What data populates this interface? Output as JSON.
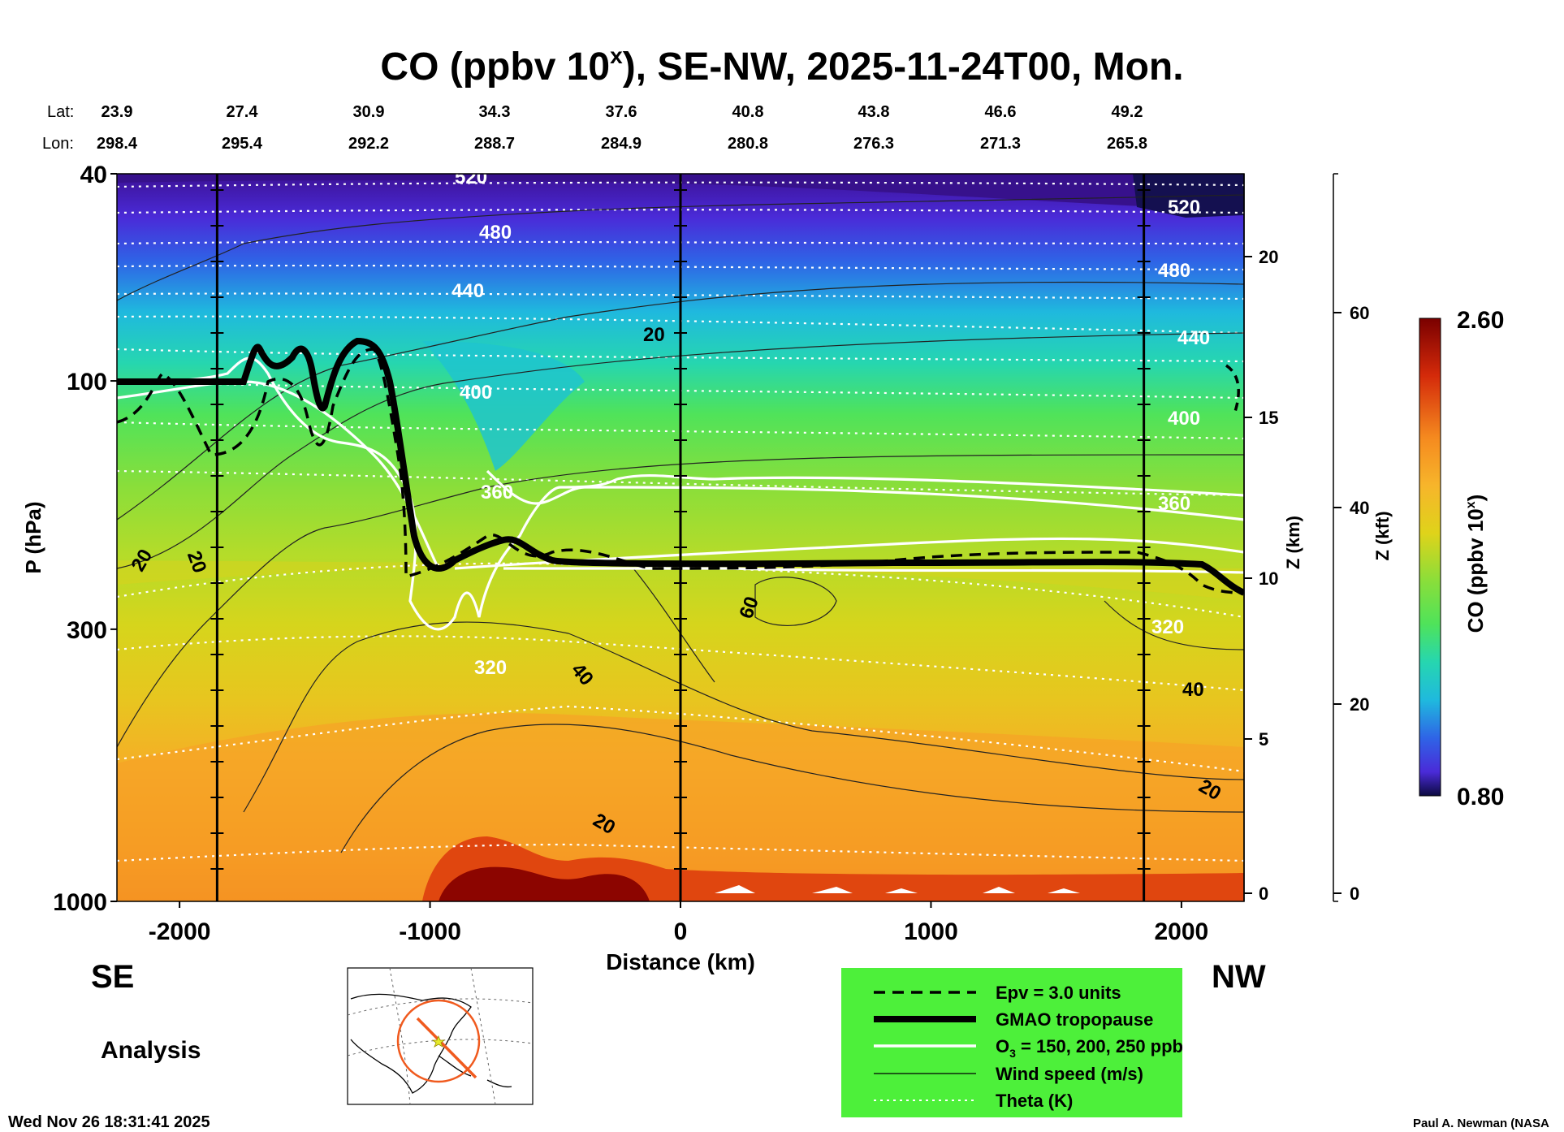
{
  "chart_data": {
    "type": "heatmap",
    "title_main": "CO (ppbv 10",
    "title_sup": "x",
    "title_rest": "), SE-NW, 2025-11-24T00, Mon.",
    "lat_label": "Lat:",
    "lon_label": "Lon:",
    "lats": [
      "23.9",
      "27.4",
      "30.9",
      "34.3",
      "37.6",
      "40.8",
      "43.8",
      "46.6",
      "49.2"
    ],
    "lons": [
      "298.4",
      "295.4",
      "292.2",
      "288.7",
      "284.9",
      "280.8",
      "276.3",
      "271.3",
      "265.8"
    ],
    "xlabel": "Distance (km)",
    "xlim": [
      -2250,
      2250
    ],
    "xticks": [
      -2000,
      -1000,
      0,
      1000,
      2000
    ],
    "xtick_labels": [
      "-2000",
      "-1000",
      "0",
      "1000",
      "2000"
    ],
    "ylabel": "P (hPa)",
    "yscale": "log",
    "ylim": [
      1000,
      40
    ],
    "yticks": [
      40,
      100,
      300,
      1000
    ],
    "ytick_labels": [
      "40",
      "100",
      "300",
      "1000"
    ],
    "z_km_label": "Z (km)",
    "z_km_ticks": [
      "0",
      "5",
      "10",
      "15",
      "20"
    ],
    "z_kft_label": "Z (kft)",
    "z_kft_ticks": [
      "0",
      "20",
      "40",
      "60"
    ],
    "colorbar_label": "CO (ppbv 10",
    "colorbar_sup": "x",
    "colorbar_close": ")",
    "colorbar_max": "2.60",
    "colorbar_min": "0.80",
    "colors": {
      "dark_red": "#7a0000",
      "red": "#d42a0a",
      "orange": "#f58a1f",
      "light_orange": "#f7b52b",
      "yellow": "#dfd31a",
      "yellow_green": "#b3dc2a",
      "green": "#4fe35a",
      "teal": "#26d6b0",
      "cyan": "#1fb9de",
      "blue": "#2f63e6",
      "indigo": "#4a2bd8",
      "purple": "#3a1090",
      "navy": "#0c0a40"
    },
    "theta_labels": [
      "520",
      "480",
      "440",
      "400",
      "360",
      "320",
      "520",
      "480",
      "440",
      "400",
      "360",
      "320"
    ],
    "wind_labels": [
      "20",
      "20",
      "20",
      "60",
      "40",
      "40",
      "20",
      "20"
    ],
    "vertical_lines_km": [
      -1850,
      0,
      1850
    ],
    "left_label": "SE",
    "right_label": "NW",
    "analysis_label": "Analysis",
    "legend": [
      {
        "style": "dashed",
        "label": "Epv = 3.0 units"
      },
      {
        "style": "thick",
        "label": "GMAO tropopause"
      },
      {
        "style": "white",
        "label": "O",
        "sub": "3",
        "rest": " = 150, 200, 250 ppb"
      },
      {
        "style": "thin",
        "label": "Wind speed (m/s)"
      },
      {
        "style": "dotted",
        "label": "Theta (K)"
      }
    ],
    "timestamp": "Wed Nov 26 18:31:41 2025",
    "credit": "Paul A. Newman (NASA"
  }
}
